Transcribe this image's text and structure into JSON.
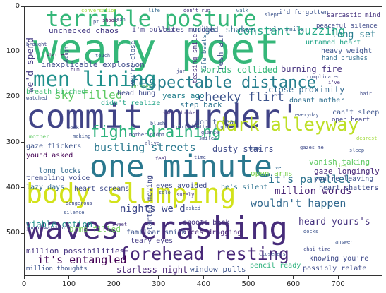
{
  "cloud": {
    "words": [
      {
        "text": "weary poet",
        "color": "#35b779"
      },
      {
        "text": "commit murder'",
        "color": "#414487"
      },
      {
        "text": "one minute",
        "color": "#2a788e"
      },
      {
        "text": "waves crashing",
        "color": "#472c7a"
      },
      {
        "text": "body slumping",
        "color": "#d2e21b"
      },
      {
        "text": "terrible posture",
        "color": "#35b779"
      },
      {
        "text": "men lining",
        "color": "#21918c"
      },
      {
        "text": "respectable distance",
        "color": "#277f8e"
      },
      {
        "text": "fight draining",
        "color": "#2db27d"
      },
      {
        "text": "dark alleyway",
        "color": "#bddf26"
      },
      {
        "text": "forehead resting",
        "color": "#482878"
      },
      {
        "text": "constant buzzing",
        "color": "#22a884"
      },
      {
        "text": "sky filled",
        "color": "#5ec962"
      },
      {
        "text": "cheeky flirt",
        "color": "#3b528b"
      },
      {
        "text": "bustling streets",
        "color": "#2a788e"
      },
      {
        "text": "it's parallel",
        "color": "#2c728e"
      },
      {
        "text": "wouldn't happen",
        "color": "#31688e"
      },
      {
        "text": "it's entangled",
        "color": "#440154"
      },
      {
        "text": "nights we'd",
        "color": "#3e4989"
      },
      {
        "text": "million words",
        "color": "#482475"
      },
      {
        "text": "we'd spend",
        "color": "#443983"
      },
      {
        "text": "night shakes",
        "color": "#31688e"
      },
      {
        "text": "long set",
        "color": "#287c8e"
      },
      {
        "text": "unchecked chaos",
        "color": "#443983"
      },
      {
        "text": "worlds collided",
        "color": "#35b779"
      },
      {
        "text": "burning fire",
        "color": "#46327e"
      },
      {
        "text": "close proximity",
        "color": "#31688e"
      },
      {
        "text": "dusty stairs",
        "color": "#3e4a89"
      },
      {
        "text": "viable option",
        "color": "#21918c"
      },
      {
        "text": "heard yours's",
        "color": "#46337f"
      },
      {
        "text": "starless night",
        "color": "#482475"
      },
      {
        "text": "window pulls",
        "color": "#3b528b"
      },
      {
        "text": "million possibilities",
        "color": "#46337f"
      },
      {
        "text": "arms filled",
        "color": "#6ece58"
      },
      {
        "text": "inexplicable explosion",
        "color": "#3e4a89"
      },
      {
        "text": "untamed heart",
        "color": "#20a386"
      },
      {
        "text": "heavy weight",
        "color": "#3b528b"
      },
      {
        "text": "hand brushes",
        "color": "#2e6e8e"
      },
      {
        "text": "peaceful silence",
        "color": "#3e4989"
      },
      {
        "text": "sarcastic mind",
        "color": "#46327e"
      },
      {
        "text": "i'd forgotten",
        "color": "#3b528b"
      },
      {
        "text": "voices muddled",
        "color": "#414487"
      },
      {
        "text": "i'm pulled",
        "color": "#433e85"
      },
      {
        "text": "sly smile",
        "color": "#33638d"
      },
      {
        "text": "breath hitched",
        "color": "#3fbc73"
      },
      {
        "text": "head hung",
        "color": "#3e4a89"
      },
      {
        "text": "years ago",
        "color": "#26828e"
      },
      {
        "text": "step back",
        "color": "#2c728e"
      },
      {
        "text": "don't hear",
        "color": "#3b528b"
      },
      {
        "text": "doesnt mother",
        "color": "#2e6e8e"
      },
      {
        "text": "open heart",
        "color": "#414487"
      },
      {
        "text": "can't sleep",
        "color": "#3b528b"
      },
      {
        "text": "gaze flickers",
        "color": "#3b528b"
      },
      {
        "text": "you'd asked",
        "color": "#440154"
      },
      {
        "text": "long locks",
        "color": "#31688e"
      },
      {
        "text": "trembling voice",
        "color": "#3e4989"
      },
      {
        "text": "lazy days",
        "color": "#31688e"
      },
      {
        "text": "heart screams",
        "color": "#3e4a89"
      },
      {
        "text": "vanish taking",
        "color": "#5ec962"
      },
      {
        "text": "open arms",
        "color": "#7ad151"
      },
      {
        "text": "gaze longingly",
        "color": "#482878"
      },
      {
        "text": "you're leaving",
        "color": "#3b528b"
      },
      {
        "text": "heart shatters",
        "color": "#3e4989"
      },
      {
        "text": "he's silent",
        "color": "#2c728e"
      },
      {
        "text": "voices dragging",
        "color": "#482475"
      },
      {
        "text": "familiar smirk",
        "color": "#3b528b"
      },
      {
        "text": "teary eyes",
        "color": "#443a83"
      },
      {
        "text": "shoots back",
        "color": "#46327e"
      },
      {
        "text": "eyes avoided",
        "color": "#3e4989"
      },
      {
        "text": "pencil ready",
        "color": "#2db27d"
      },
      {
        "text": "possibly relate",
        "color": "#3e4a89"
      },
      {
        "text": "knowing you're",
        "color": "#3e4989"
      },
      {
        "text": "million thoughts",
        "color": "#3b528b"
      },
      {
        "text": "didn't realize",
        "color": "#20a386"
      },
      {
        "text": "fresh air",
        "color": "#3e4989"
      },
      {
        "text": "life beats",
        "color": "#31688e"
      },
      {
        "text": "teasing smile",
        "color": "#46327e"
      },
      {
        "text": "you're close",
        "color": "#3b528b"
      },
      {
        "text": "started moving",
        "color": "#3e4989"
      },
      {
        "text": "conversation",
        "color": "#a0da39"
      },
      {
        "text": "don't run",
        "color": "#46327e"
      },
      {
        "text": "walk",
        "color": "#31688e"
      },
      {
        "text": "brought",
        "color": "#3e4989"
      },
      {
        "text": "started",
        "color": "#440154"
      },
      {
        "text": "touch",
        "color": "#3b528b"
      },
      {
        "text": "sweet broken",
        "color": "#46327e"
      },
      {
        "text": "mother",
        "color": "#5ec962"
      },
      {
        "text": "book",
        "color": "#3e4989"
      },
      {
        "text": "smiles",
        "color": "#3b528b"
      },
      {
        "text": "blush",
        "color": "#3b528b"
      },
      {
        "text": "dangerous",
        "color": "#3e4989"
      },
      {
        "text": "silence",
        "color": "#3b528b"
      },
      {
        "text": "surely",
        "color": "#46327e"
      },
      {
        "text": "closeness",
        "color": "#3b528b"
      },
      {
        "text": "chai time",
        "color": "#3e4989"
      },
      {
        "text": "answer",
        "color": "#3b528b"
      },
      {
        "text": "dearest",
        "color": "#a0da39"
      },
      {
        "text": "complicated",
        "color": "#3e4989"
      },
      {
        "text": "everyday",
        "color": "#3b528b"
      },
      {
        "text": "shook",
        "color": "#440154"
      },
      {
        "text": "jar",
        "color": "#3e4989"
      },
      {
        "text": "ve",
        "color": "#31688e"
      },
      {
        "text": "sleep",
        "color": "#3b528b"
      },
      {
        "text": "hum",
        "color": "#46327e"
      },
      {
        "text": "solo",
        "color": "#3b528b"
      },
      {
        "text": "alive",
        "color": "#3e4989"
      },
      {
        "text": "lies",
        "color": "#7ad151"
      },
      {
        "text": "docks",
        "color": "#3b528b"
      },
      {
        "text": "gazes me",
        "color": "#3e4989"
      },
      {
        "text": "life",
        "color": "#31688e"
      },
      {
        "text": "lean",
        "color": "#3b528b"
      },
      {
        "text": "whisper",
        "color": "#5ec962"
      },
      {
        "text": "laugh",
        "color": "#3e4989"
      },
      {
        "text": "slept",
        "color": "#3b528b"
      },
      {
        "text": "i've",
        "color": "#46327e"
      },
      {
        "text": "gaze",
        "color": "#3b528b"
      },
      {
        "text": "hair",
        "color": "#3e4989"
      },
      {
        "text": "pt",
        "color": "#3b528b"
      },
      {
        "text": "time",
        "color": "#3e4989"
      },
      {
        "text": "making",
        "color": "#3b528b"
      },
      {
        "text": "feel",
        "color": "#46327e"
      },
      {
        "text": "mother didnt",
        "color": "#3e4989"
      },
      {
        "text": "touch feather light",
        "color": "#3b528b"
      },
      {
        "text": "glance",
        "color": "#3e4989"
      },
      {
        "text": "watched",
        "color": "#3b528b"
      },
      {
        "text": "you'd watched",
        "color": "#3e4989"
      },
      {
        "text": "sweet",
        "color": "#46327e"
      },
      {
        "text": "asked",
        "color": "#3b528b"
      }
    ]
  },
  "axes": {
    "x_ticks": [
      "0",
      "100",
      "200",
      "300",
      "400",
      "500",
      "600",
      "700"
    ],
    "y_ticks": [
      "0",
      "100",
      "200",
      "300",
      "400",
      "500"
    ]
  }
}
